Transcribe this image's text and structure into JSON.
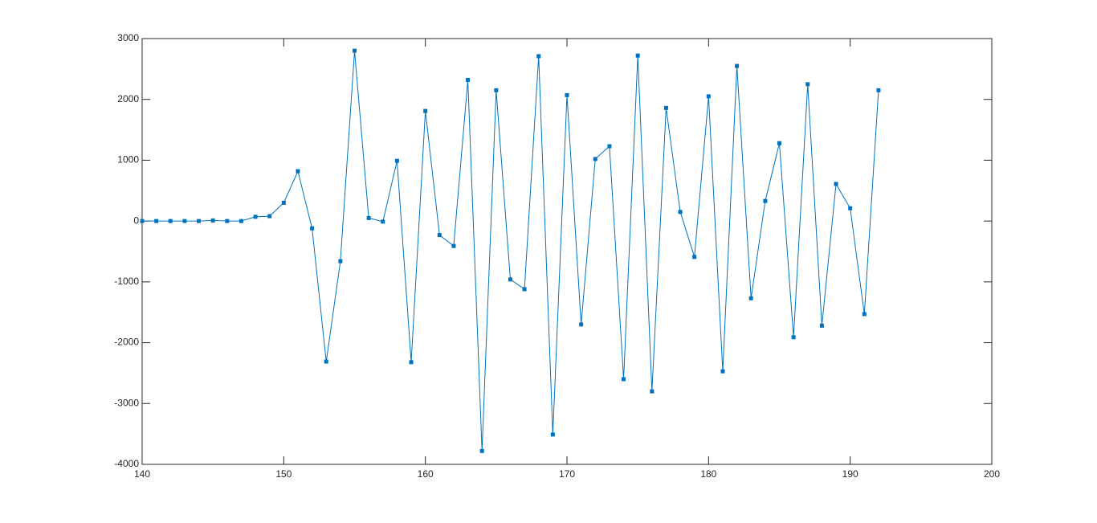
{
  "chart_data": {
    "type": "line",
    "x": [
      140,
      141,
      142,
      143,
      144,
      145,
      146,
      147,
      148,
      149,
      150,
      151,
      152,
      153,
      154,
      155,
      156,
      157,
      158,
      159,
      160,
      161,
      162,
      163,
      164,
      165,
      166,
      167,
      168,
      169,
      170,
      171,
      172,
      173,
      174,
      175,
      176,
      177,
      178,
      179,
      180,
      181,
      182,
      183,
      184,
      185,
      186,
      187,
      188,
      189,
      190,
      191,
      192
    ],
    "series": [
      {
        "color": "#0072bd",
        "values": [
          0,
          0,
          0,
          0,
          0,
          10,
          0,
          0,
          70,
          80,
          300,
          820,
          -120,
          -2310,
          -660,
          2800,
          50,
          -10,
          990,
          -2320,
          1810,
          -230,
          -410,
          2320,
          -3780,
          2150,
          -960,
          -1120,
          2710,
          -3510,
          2070,
          -1700,
          1020,
          1230,
          -2600,
          2720,
          -2800,
          1860,
          150,
          -590,
          2050,
          -2470,
          2550,
          -1270,
          330,
          1280,
          -1910,
          2250,
          -1720,
          610,
          210,
          -1530,
          2150
        ]
      }
    ],
    "xlim": [
      140,
      200
    ],
    "xticks": [
      140,
      150,
      160,
      170,
      180,
      190,
      200
    ],
    "ylim": [
      -4000,
      3000
    ],
    "yticks": [
      -4000,
      -3000,
      -2000,
      -1000,
      0,
      1000,
      2000,
      3000
    ],
    "grid": false,
    "marker": "square"
  }
}
